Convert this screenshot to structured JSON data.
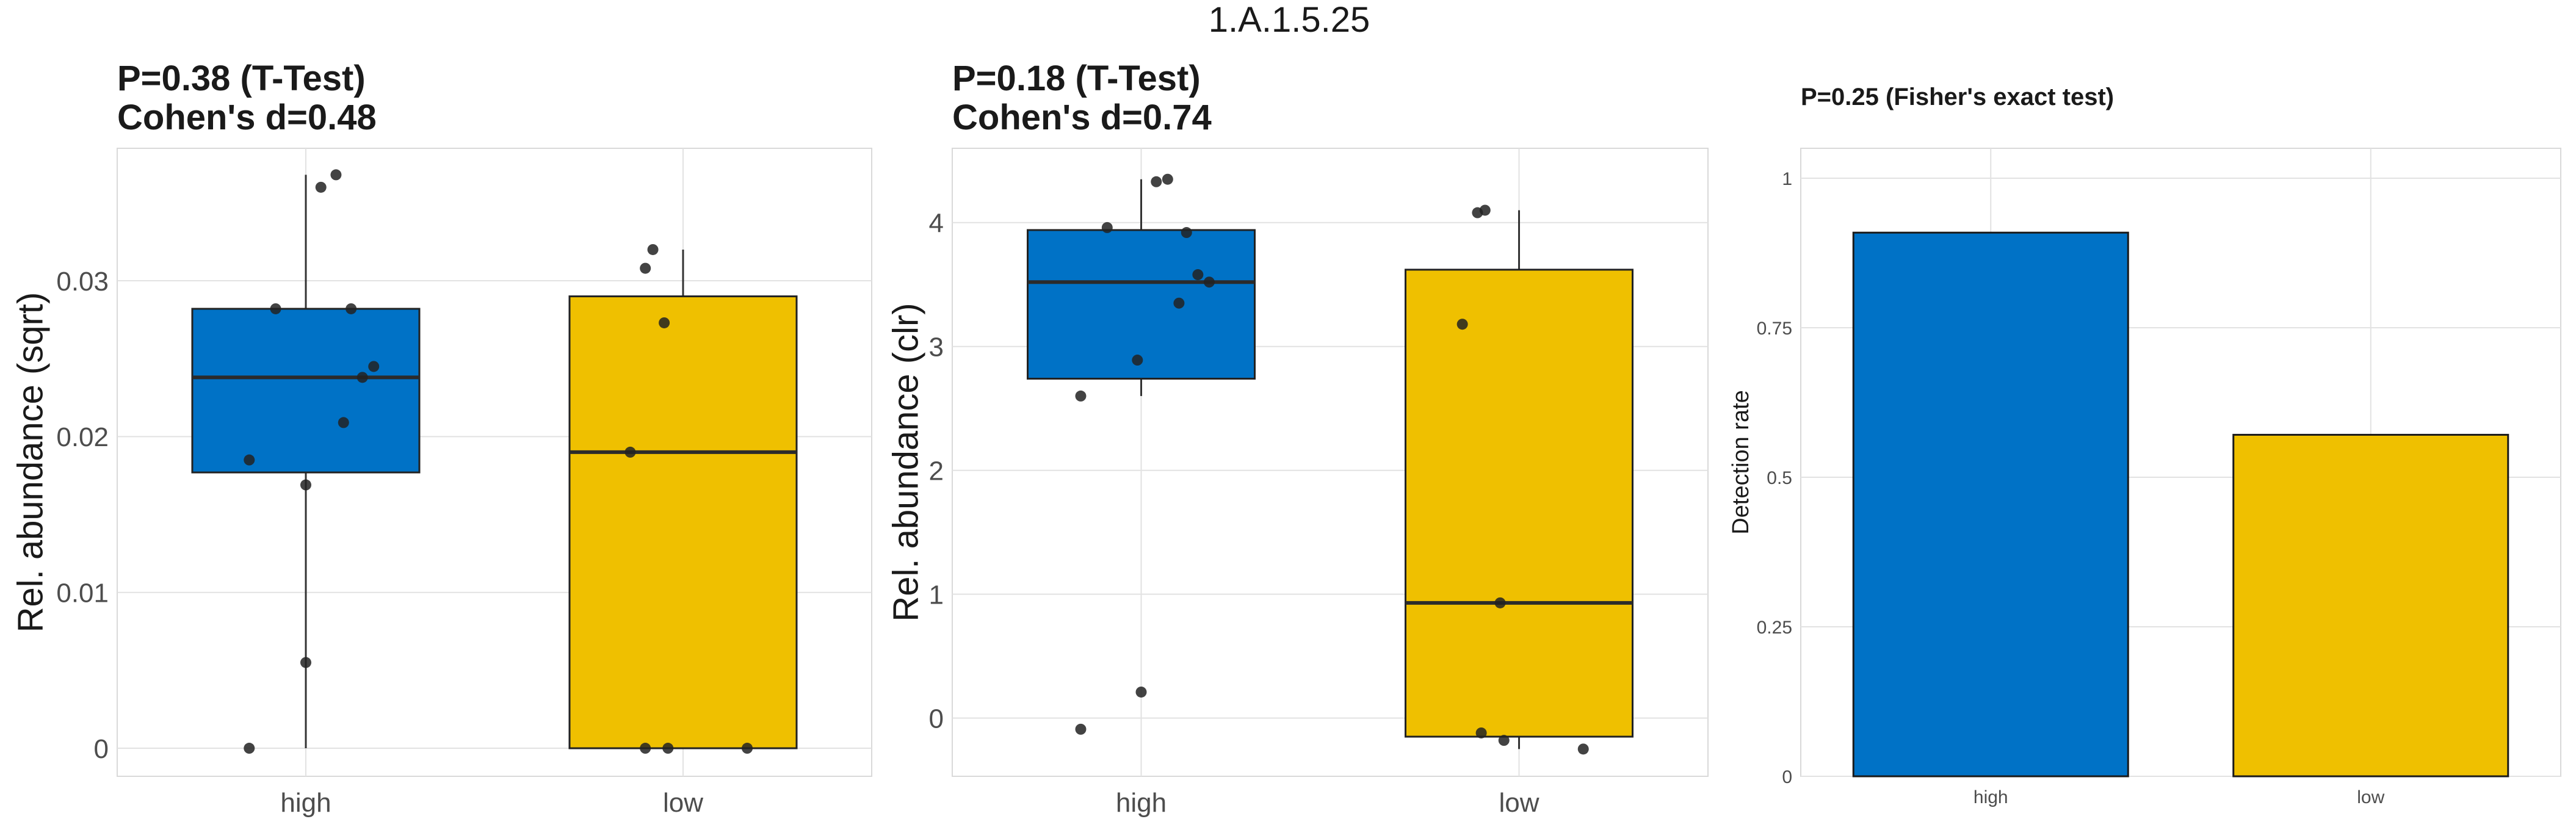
{
  "figure_title": "1.A.1.5.25",
  "colors": {
    "high": "#0072C6",
    "low": "#EFC000",
    "grid": "#E2E2E2",
    "panel_border": "#D9D9D9",
    "text": "#1A1A1A",
    "tick_text": "#4D4D4D",
    "point": "#222222"
  },
  "chart_data": [
    {
      "type": "box",
      "title_line1": "P=0.38 (T-Test)",
      "title_line2": "Cohen's d=0.48",
      "xlabel": "",
      "ylabel": "Rel. abundance (sqrt)",
      "categories": [
        "high",
        "low"
      ],
      "ylim": [
        -0.0018,
        0.0385
      ],
      "yticks": [
        0,
        0.01,
        0.02,
        0.03
      ],
      "ytick_labels": [
        "0",
        "0.01",
        "0.02",
        "0.03"
      ],
      "boxes": [
        {
          "group": "high",
          "min": 0.0,
          "q1": 0.0177,
          "median": 0.0238,
          "q3": 0.0282,
          "max": 0.0368
        },
        {
          "group": "low",
          "min": 0.0,
          "q1": 0.0,
          "median": 0.019,
          "q3": 0.029,
          "max": 0.032
        }
      ],
      "points": [
        {
          "group": "high",
          "values": [
            0.0,
            0.0055,
            0.0169,
            0.0185,
            0.0209,
            0.0238,
            0.0245,
            0.0282,
            0.0282,
            0.036,
            0.0368
          ],
          "jitter": [
            -0.15,
            0.0,
            0.0,
            -0.15,
            0.1,
            0.15,
            0.18,
            -0.08,
            0.12,
            0.04,
            0.08
          ]
        },
        {
          "group": "low",
          "values": [
            0.0,
            0.0,
            0.0,
            0.019,
            0.0273,
            0.0308,
            0.032
          ],
          "jitter": [
            -0.1,
            -0.04,
            0.17,
            -0.14,
            -0.05,
            -0.1,
            -0.08
          ]
        }
      ]
    },
    {
      "type": "box",
      "title_line1": "P=0.18 (T-Test)",
      "title_line2": "Cohen's d=0.74",
      "xlabel": "",
      "ylabel": "Rel. abundance (clr)",
      "categories": [
        "high",
        "low"
      ],
      "ylim": [
        -0.47,
        4.6
      ],
      "yticks": [
        0,
        1,
        2,
        3,
        4
      ],
      "ytick_labels": [
        "0",
        "1",
        "2",
        "3",
        "4"
      ],
      "boxes": [
        {
          "group": "high",
          "min": 2.6,
          "q1": 2.74,
          "median": 3.52,
          "q3": 3.94,
          "max": 4.35
        },
        {
          "group": "low",
          "min": -0.25,
          "q1": -0.15,
          "median": 0.93,
          "q3": 3.62,
          "max": 4.1
        }
      ],
      "points": [
        {
          "group": "high",
          "values": [
            -0.09,
            0.21,
            2.6,
            2.89,
            3.35,
            3.52,
            3.58,
            3.92,
            3.96,
            4.33,
            4.35
          ],
          "jitter": [
            -0.16,
            0.0,
            -0.16,
            -0.01,
            0.1,
            0.18,
            0.15,
            0.12,
            -0.09,
            0.04,
            0.07
          ]
        },
        {
          "group": "low",
          "values": [
            -0.25,
            -0.18,
            -0.12,
            0.93,
            3.18,
            4.08,
            4.1
          ],
          "jitter": [
            0.17,
            -0.04,
            -0.1,
            -0.05,
            -0.15,
            -0.11,
            -0.09
          ]
        }
      ]
    },
    {
      "type": "bar",
      "title_line1": "P=0.25 (Fisher's exact test)",
      "xlabel": "",
      "ylabel": "Detection rate",
      "categories": [
        "high",
        "low"
      ],
      "values": [
        0.909,
        0.571
      ],
      "ylim": [
        0,
        1.05
      ],
      "yticks": [
        0,
        0.25,
        0.5,
        0.75,
        1
      ],
      "ytick_labels": [
        "0",
        "0.25",
        "0.5",
        "0.75",
        "1"
      ]
    }
  ]
}
